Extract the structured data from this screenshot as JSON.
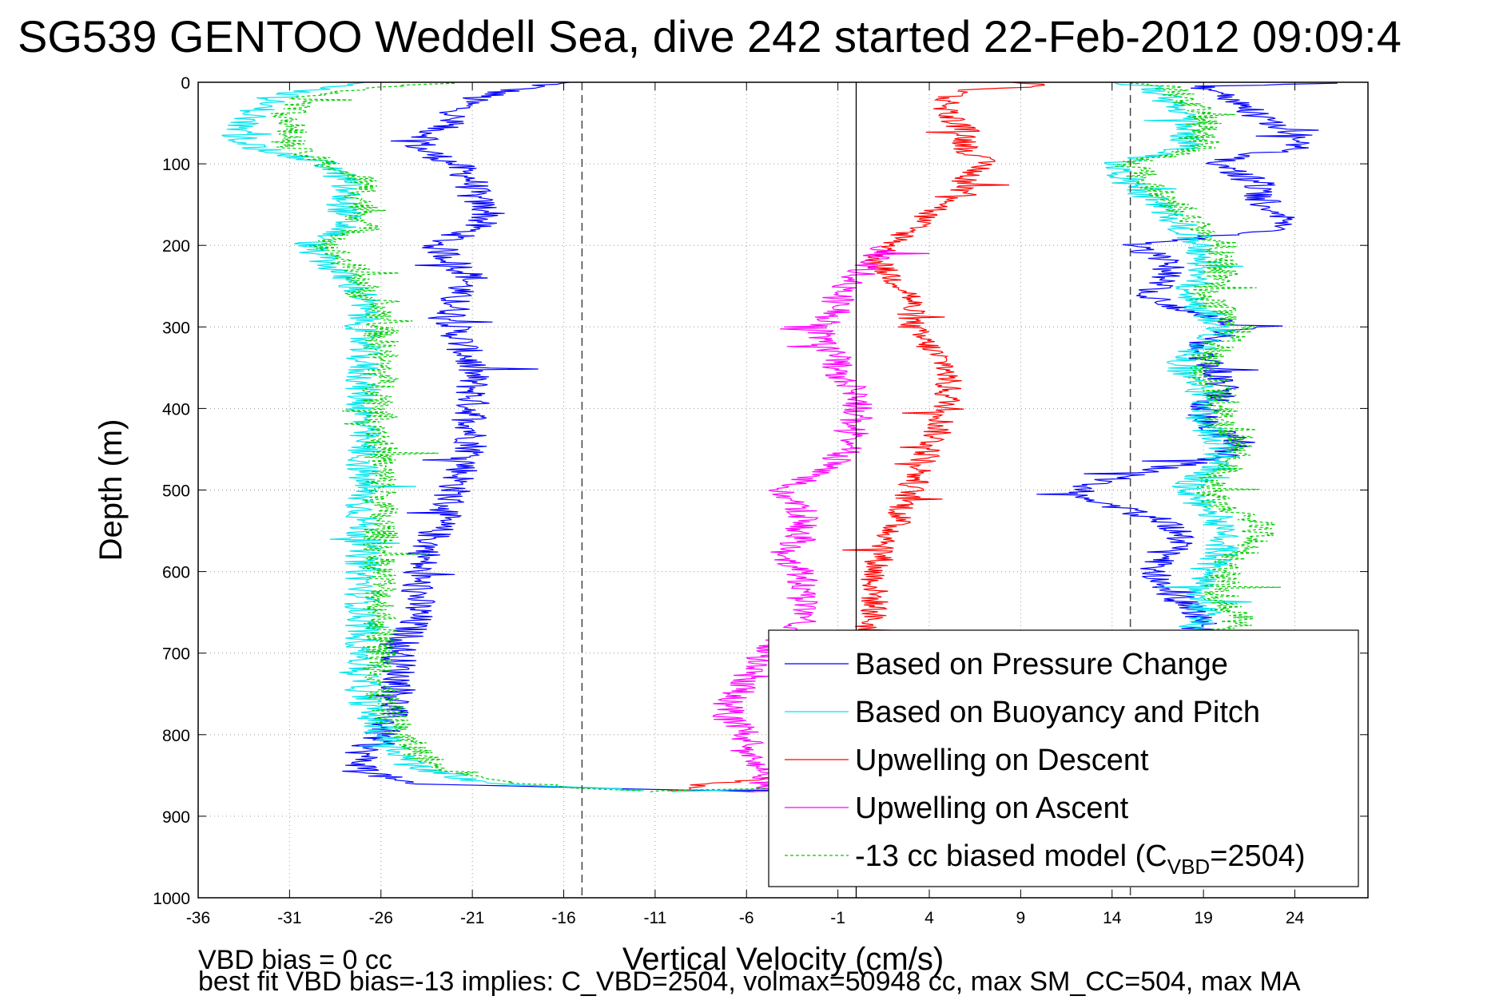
{
  "chart_data": {
    "type": "line",
    "title": "SG539 GENTOO Weddell Sea, dive 242 started 22-Feb-2012 09:09:4",
    "xlabel": "Vertical Velocity (cm/s)",
    "ylabel": "Depth (m)",
    "xlim": [
      -36,
      28
    ],
    "ylim": [
      0,
      1000
    ],
    "y_reversed": true,
    "x_ticks": [
      "-36",
      "-31",
      "-26",
      "-21",
      "-16",
      "-11",
      "-6",
      "-1",
      "4",
      "9",
      "14",
      "19",
      "24"
    ],
    "y_ticks": [
      "0",
      "100",
      "200",
      "300",
      "400",
      "500",
      "600",
      "700",
      "800",
      "900",
      "1000"
    ],
    "grid": true,
    "legend_position": "lower-right",
    "reference_lines": {
      "solid": [
        0
      ],
      "dashed": [
        -15,
        15
      ]
    },
    "series": [
      {
        "name": "Based on Pressure Change",
        "color": "#0000ff",
        "style": "solid",
        "noise": 1.0,
        "branches": [
          {
            "depth": [
              0,
              10,
              20,
              40,
              60,
              80,
              100,
              120,
              140,
              160,
              180,
              200,
              220,
              240,
              260,
              280,
              300,
              350,
              400,
              450,
              500,
              550,
              600,
              650,
              700,
              750,
              800,
              820,
              840,
              860,
              870
            ],
            "x": [
              -16,
              -19,
              -21,
              -22,
              -23,
              -24,
              -22,
              -21,
              -21,
              -20,
              -21,
              -23,
              -22,
              -21,
              -22,
              -22,
              -22,
              -21,
              -21,
              -21,
              -22,
              -23,
              -24,
              -24,
              -25,
              -25,
              -26,
              -27,
              -27,
              -25,
              -5
            ]
          },
          {
            "depth": [
              870,
              860,
              850,
              800,
              750,
              700,
              660,
              640,
              620,
              600,
              580,
              560,
              540,
              520,
              500,
              480,
              460,
              440,
              420,
              400,
              380,
              360,
              340,
              320,
              300,
              280,
              260,
              240,
              220,
              200,
              180,
              160,
              140,
              120,
              100,
              80,
              60,
              40,
              20,
              5,
              0
            ],
            "x": [
              -6,
              10,
              15,
              18,
              18,
              18,
              19,
              18,
              17,
              16,
              17,
              18,
              17,
              14,
              12,
              15,
              20,
              21,
              19,
              19,
              20,
              20,
              19,
              19,
              21,
              18,
              16,
              17,
              17,
              15,
              23,
              23,
              22,
              22,
              19,
              24,
              24,
              22,
              20,
              19,
              28
            ]
          }
        ]
      },
      {
        "name": "Based on Buoyancy and Pitch",
        "color": "#00e5ee",
        "style": "solid",
        "noise": 1.0,
        "branches": [
          {
            "depth": [
              0,
              10,
              20,
              40,
              60,
              80,
              100,
              120,
              140,
              160,
              180,
              200,
              220,
              240,
              260,
              280,
              300,
              350,
              400,
              450,
              500,
              550,
              600,
              650,
              700,
              750,
              800,
              820,
              840,
              860,
              870
            ],
            "x": [
              -26,
              -30,
              -32,
              -33,
              -34,
              -33,
              -29,
              -28,
              -28,
              -28,
              -28,
              -30,
              -29,
              -28,
              -27,
              -27,
              -27,
              -27,
              -27,
              -27,
              -27,
              -27,
              -27,
              -27,
              -27,
              -27,
              -26,
              -25,
              -24,
              -20,
              -10
            ]
          },
          {
            "depth": [
              870,
              860,
              850,
              800,
              750,
              700,
              660,
              640,
              620,
              600,
              580,
              560,
              540,
              520,
              500,
              480,
              460,
              440,
              420,
              400,
              380,
              360,
              340,
              320,
              300,
              280,
              260,
              240,
              220,
              200,
              180,
              160,
              140,
              120,
              100,
              80,
              60,
              40,
              20,
              5,
              0
            ],
            "x": [
              -10,
              5,
              15,
              17,
              18,
              18,
              19,
              19,
              19,
              19,
              20,
              20,
              20,
              19,
              18,
              19,
              20,
              20,
              19,
              19,
              19,
              18,
              18,
              19,
              20,
              19,
              18,
              19,
              19,
              19,
              18,
              17,
              16,
              15,
              14,
              18,
              18,
              18,
              17,
              16,
              14
            ]
          }
        ]
      },
      {
        "name": "Upwelling on Descent",
        "color": "#ff0000",
        "style": "solid",
        "noise": 0.8,
        "branches": [
          {
            "depth": [
              0,
              5,
              10,
              20,
              40,
              60,
              80,
              100,
              120,
              140,
              160,
              180,
              200,
              220,
              240,
              260,
              280,
              300,
              350,
              400,
              450,
              500,
              550,
              600,
              650,
              700,
              750,
              800,
              850,
              860,
              870
            ],
            "x": [
              9,
              10,
              6,
              5,
              5,
              6,
              6,
              7,
              6,
              6,
              4,
              3,
              2,
              1,
              2,
              3,
              3,
              3,
              5,
              5,
              4,
              3,
              2,
              1,
              1,
              0,
              -1,
              -2,
              -3,
              -8,
              -10
            ]
          }
        ]
      },
      {
        "name": "Upwelling on Ascent",
        "color": "#ff00ff",
        "style": "solid",
        "noise": 0.9,
        "branches": [
          {
            "depth": [
              870,
              860,
              850,
              820,
              800,
              780,
              760,
              740,
              720,
              700,
              680,
              660,
              640,
              620,
              600,
              580,
              560,
              540,
              520,
              500,
              480,
              460,
              440,
              420,
              400,
              380,
              360,
              340,
              320,
              300,
              280,
              260,
              240,
              220,
              210,
              200
            ],
            "x": [
              -5,
              -5,
              -5,
              -6,
              -6,
              -7,
              -7,
              -6,
              -6,
              -5,
              -4,
              -3,
              -3,
              -3,
              -3,
              -4,
              -3,
              -3,
              -3,
              -4,
              -2,
              -1,
              0,
              0,
              0,
              0,
              -1,
              -1,
              -2,
              -2,
              -1,
              -1,
              0,
              1,
              1,
              2
            ]
          }
        ]
      },
      {
        "name": "-13 cc biased model (C",
        "name_sub": "VBD",
        "name_end": "=2504)",
        "color": "#00cc00",
        "style": "dashed",
        "noise": 1.0,
        "branches": [
          {
            "depth": [
              0,
              10,
              20,
              40,
              60,
              80,
              100,
              120,
              140,
              160,
              180,
              200,
              220,
              240,
              260,
              280,
              300,
              350,
              400,
              450,
              500,
              550,
              600,
              650,
              700,
              750,
              800,
              820,
              840,
              860,
              870
            ],
            "x": [
              -22,
              -28,
              -30,
              -31,
              -31,
              -31,
              -29,
              -27,
              -27,
              -27,
              -27,
              -29,
              -28,
              -27,
              -27,
              -26,
              -26,
              -26,
              -26,
              -26,
              -26,
              -26,
              -26,
              -26,
              -26,
              -26,
              -25,
              -24,
              -23,
              -18,
              -12
            ]
          },
          {
            "depth": [
              870,
              860,
              850,
              800,
              750,
              700,
              660,
              640,
              620,
              600,
              580,
              560,
              540,
              520,
              500,
              480,
              460,
              440,
              420,
              400,
              380,
              360,
              340,
              320,
              300,
              280,
              260,
              240,
              220,
              200,
              180,
              160,
              140,
              120,
              100,
              80,
              60,
              40,
              20,
              5,
              0
            ],
            "x": [
              -12,
              5,
              16,
              18,
              19,
              19,
              21,
              20,
              20,
              20,
              21,
              22,
              22,
              20,
              19,
              20,
              21,
              21,
              20,
              20,
              20,
              19,
              19,
              20,
              21,
              20,
              19,
              20,
              20,
              20,
              19,
              18,
              17,
              16,
              15,
              19,
              19,
              19,
              18,
              17,
              15
            ]
          }
        ]
      }
    ]
  },
  "footer": {
    "line1": "VBD bias = 0 cc",
    "line2": "best fit VBD bias=-13 implies: C_VBD=2504, volmax=50948 cc, max SM_CC=504, max MA"
  }
}
